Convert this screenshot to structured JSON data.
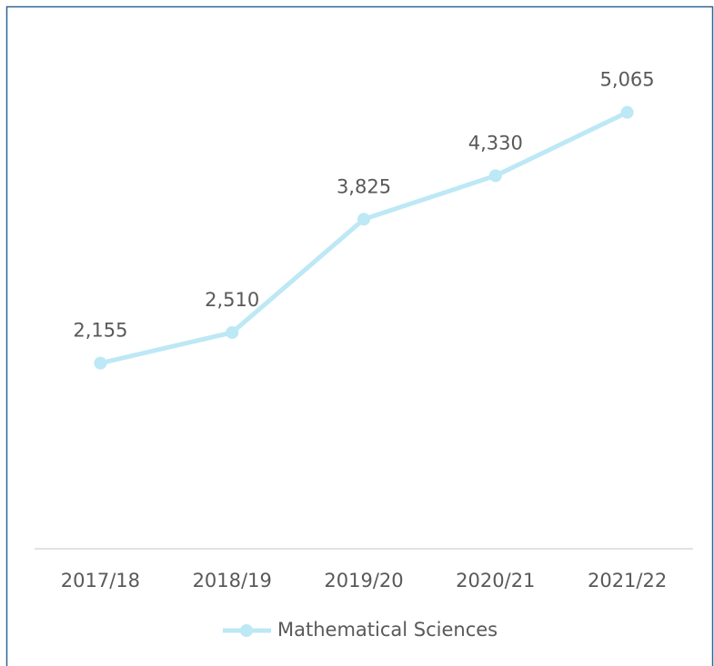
{
  "chart_data": {
    "type": "line",
    "categories": [
      "2017/18",
      "2018/19",
      "2019/20",
      "2020/21",
      "2021/22"
    ],
    "series": [
      {
        "name": "Mathematical Sciences",
        "color": "#bde8f5",
        "values": [
          2155,
          2510,
          3825,
          4330,
          5065
        ],
        "value_labels": [
          "2,155",
          "2,510",
          "3,825",
          "4,330",
          "5,065"
        ]
      }
    ],
    "ylim": [
      0,
      6000
    ],
    "grid": false,
    "legend": "bottom"
  }
}
